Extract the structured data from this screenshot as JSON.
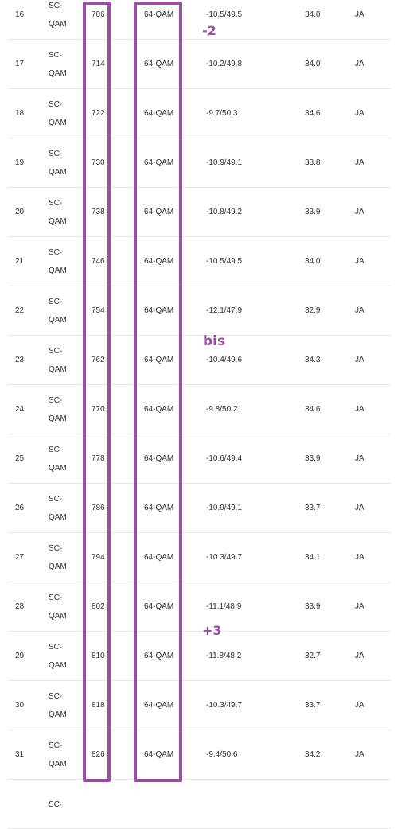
{
  "table": {
    "rows": [
      {
        "id": "16",
        "type_line1": "SC-",
        "type_line2": "QAM",
        "freq": "706",
        "modulation": "64-QAM",
        "power": "-10.5/49.5",
        "snr": "34.0",
        "lock": "JA"
      },
      {
        "id": "17",
        "type_line1": "SC-",
        "type_line2": "QAM",
        "freq": "714",
        "modulation": "64-QAM",
        "power": "-10.2/49.8",
        "snr": "34.0",
        "lock": "JA"
      },
      {
        "id": "18",
        "type_line1": "SC-",
        "type_line2": "QAM",
        "freq": "722",
        "modulation": "64-QAM",
        "power": "-9.7/50.3",
        "snr": "34.6",
        "lock": "JA"
      },
      {
        "id": "19",
        "type_line1": "SC-",
        "type_line2": "QAM",
        "freq": "730",
        "modulation": "64-QAM",
        "power": "-10.9/49.1",
        "snr": "33.8",
        "lock": "JA"
      },
      {
        "id": "20",
        "type_line1": "SC-",
        "type_line2": "QAM",
        "freq": "738",
        "modulation": "64-QAM",
        "power": "-10.8/49.2",
        "snr": "33.9",
        "lock": "JA"
      },
      {
        "id": "21",
        "type_line1": "SC-",
        "type_line2": "QAM",
        "freq": "746",
        "modulation": "64-QAM",
        "power": "-10.5/49.5",
        "snr": "34.0",
        "lock": "JA"
      },
      {
        "id": "22",
        "type_line1": "SC-",
        "type_line2": "QAM",
        "freq": "754",
        "modulation": "64-QAM",
        "power": "-12.1/47.9",
        "snr": "32.9",
        "lock": "JA"
      },
      {
        "id": "23",
        "type_line1": "SC-",
        "type_line2": "QAM",
        "freq": "762",
        "modulation": "64-QAM",
        "power": "-10.4/49.6",
        "snr": "34.3",
        "lock": "JA"
      },
      {
        "id": "24",
        "type_line1": "SC-",
        "type_line2": "QAM",
        "freq": "770",
        "modulation": "64-QAM",
        "power": "-9.8/50.2",
        "snr": "34.6",
        "lock": "JA"
      },
      {
        "id": "25",
        "type_line1": "SC-",
        "type_line2": "QAM",
        "freq": "778",
        "modulation": "64-QAM",
        "power": "-10.6/49.4",
        "snr": "33.9",
        "lock": "JA"
      },
      {
        "id": "26",
        "type_line1": "SC-",
        "type_line2": "QAM",
        "freq": "786",
        "modulation": "64-QAM",
        "power": "-10.9/49.1",
        "snr": "33.7",
        "lock": "JA"
      },
      {
        "id": "27",
        "type_line1": "SC-",
        "type_line2": "QAM",
        "freq": "794",
        "modulation": "64-QAM",
        "power": "-10.3/49.7",
        "snr": "34.1",
        "lock": "JA"
      },
      {
        "id": "28",
        "type_line1": "SC-",
        "type_line2": "QAM",
        "freq": "802",
        "modulation": "64-QAM",
        "power": "-11.1/48.9",
        "snr": "33.9",
        "lock": "JA"
      },
      {
        "id": "29",
        "type_line1": "SC-",
        "type_line2": "QAM",
        "freq": "810",
        "modulation": "64-QAM",
        "power": "-11.8/48.2",
        "snr": "32.7",
        "lock": "JA"
      },
      {
        "id": "30",
        "type_line1": "SC-",
        "type_line2": "QAM",
        "freq": "818",
        "modulation": "64-QAM",
        "power": "-10.3/49.7",
        "snr": "33.7",
        "lock": "JA"
      },
      {
        "id": "31",
        "type_line1": "SC-",
        "type_line2": "QAM",
        "freq": "826",
        "modulation": "64-QAM",
        "power": "-9.4/50.6",
        "snr": "34.2",
        "lock": "JA"
      },
      {
        "id": "",
        "type_line1": "SC-",
        "type_line2": "",
        "freq": "",
        "modulation": "",
        "power": "",
        "snr": "",
        "lock": ""
      }
    ]
  },
  "annotations": {
    "minus_two": "-2",
    "bis": "bis",
    "plus_three": "+3",
    "color": "#9a4fa4"
  }
}
